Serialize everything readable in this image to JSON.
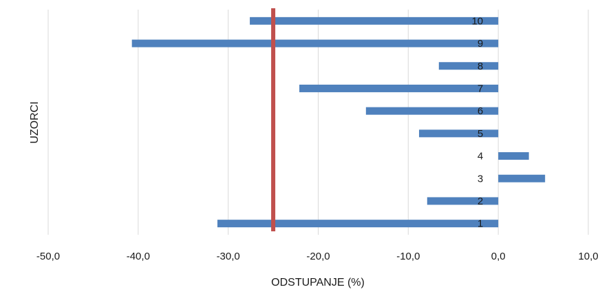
{
  "chart_data": {
    "type": "bar",
    "orientation": "horizontal",
    "categories": [
      "1",
      "2",
      "3",
      "4",
      "5",
      "6",
      "7",
      "8",
      "9",
      "10"
    ],
    "values": [
      -31.2,
      -7.9,
      5.2,
      3.4,
      -8.8,
      -14.7,
      -22.1,
      -6.6,
      -40.7,
      -27.6
    ],
    "xlabel": "ODSTUPANJE (%)",
    "ylabel": "UZORCI",
    "xlim": [
      -50,
      10
    ],
    "xticks": [
      "-50,0",
      "-40,0",
      "-30,0",
      "-20,0",
      "-10,0",
      "0,0",
      "10,0"
    ],
    "reference_line": {
      "x": -25,
      "color": "#c0504d"
    },
    "bar_color": "#4f81bd",
    "grid": "vertical",
    "legend": "none"
  }
}
